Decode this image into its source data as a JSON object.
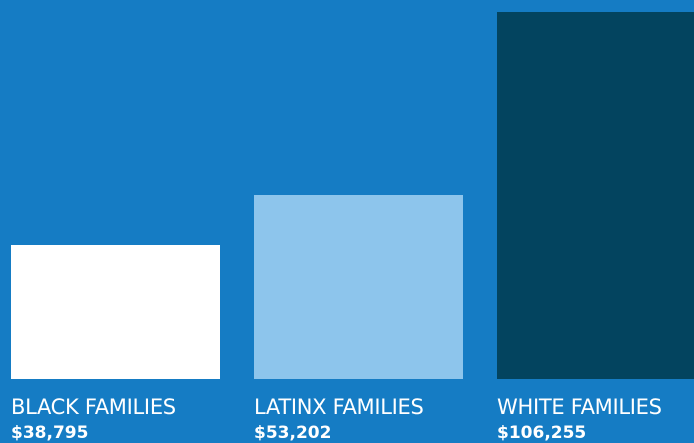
{
  "chart_data": {
    "type": "bar",
    "categories": [
      "BLACK FAMILIES",
      "LATINX FAMILIES",
      "WHITE FAMILIES"
    ],
    "values": [
      38795,
      53202,
      106255
    ],
    "value_labels": [
      "$38,795",
      "$53,202",
      "$106,255"
    ],
    "colors": [
      "#ffffff",
      "#8dc5ec",
      "#03445f"
    ],
    "background": "#157cc4",
    "ylim": [
      0,
      106255
    ],
    "grid": false
  }
}
